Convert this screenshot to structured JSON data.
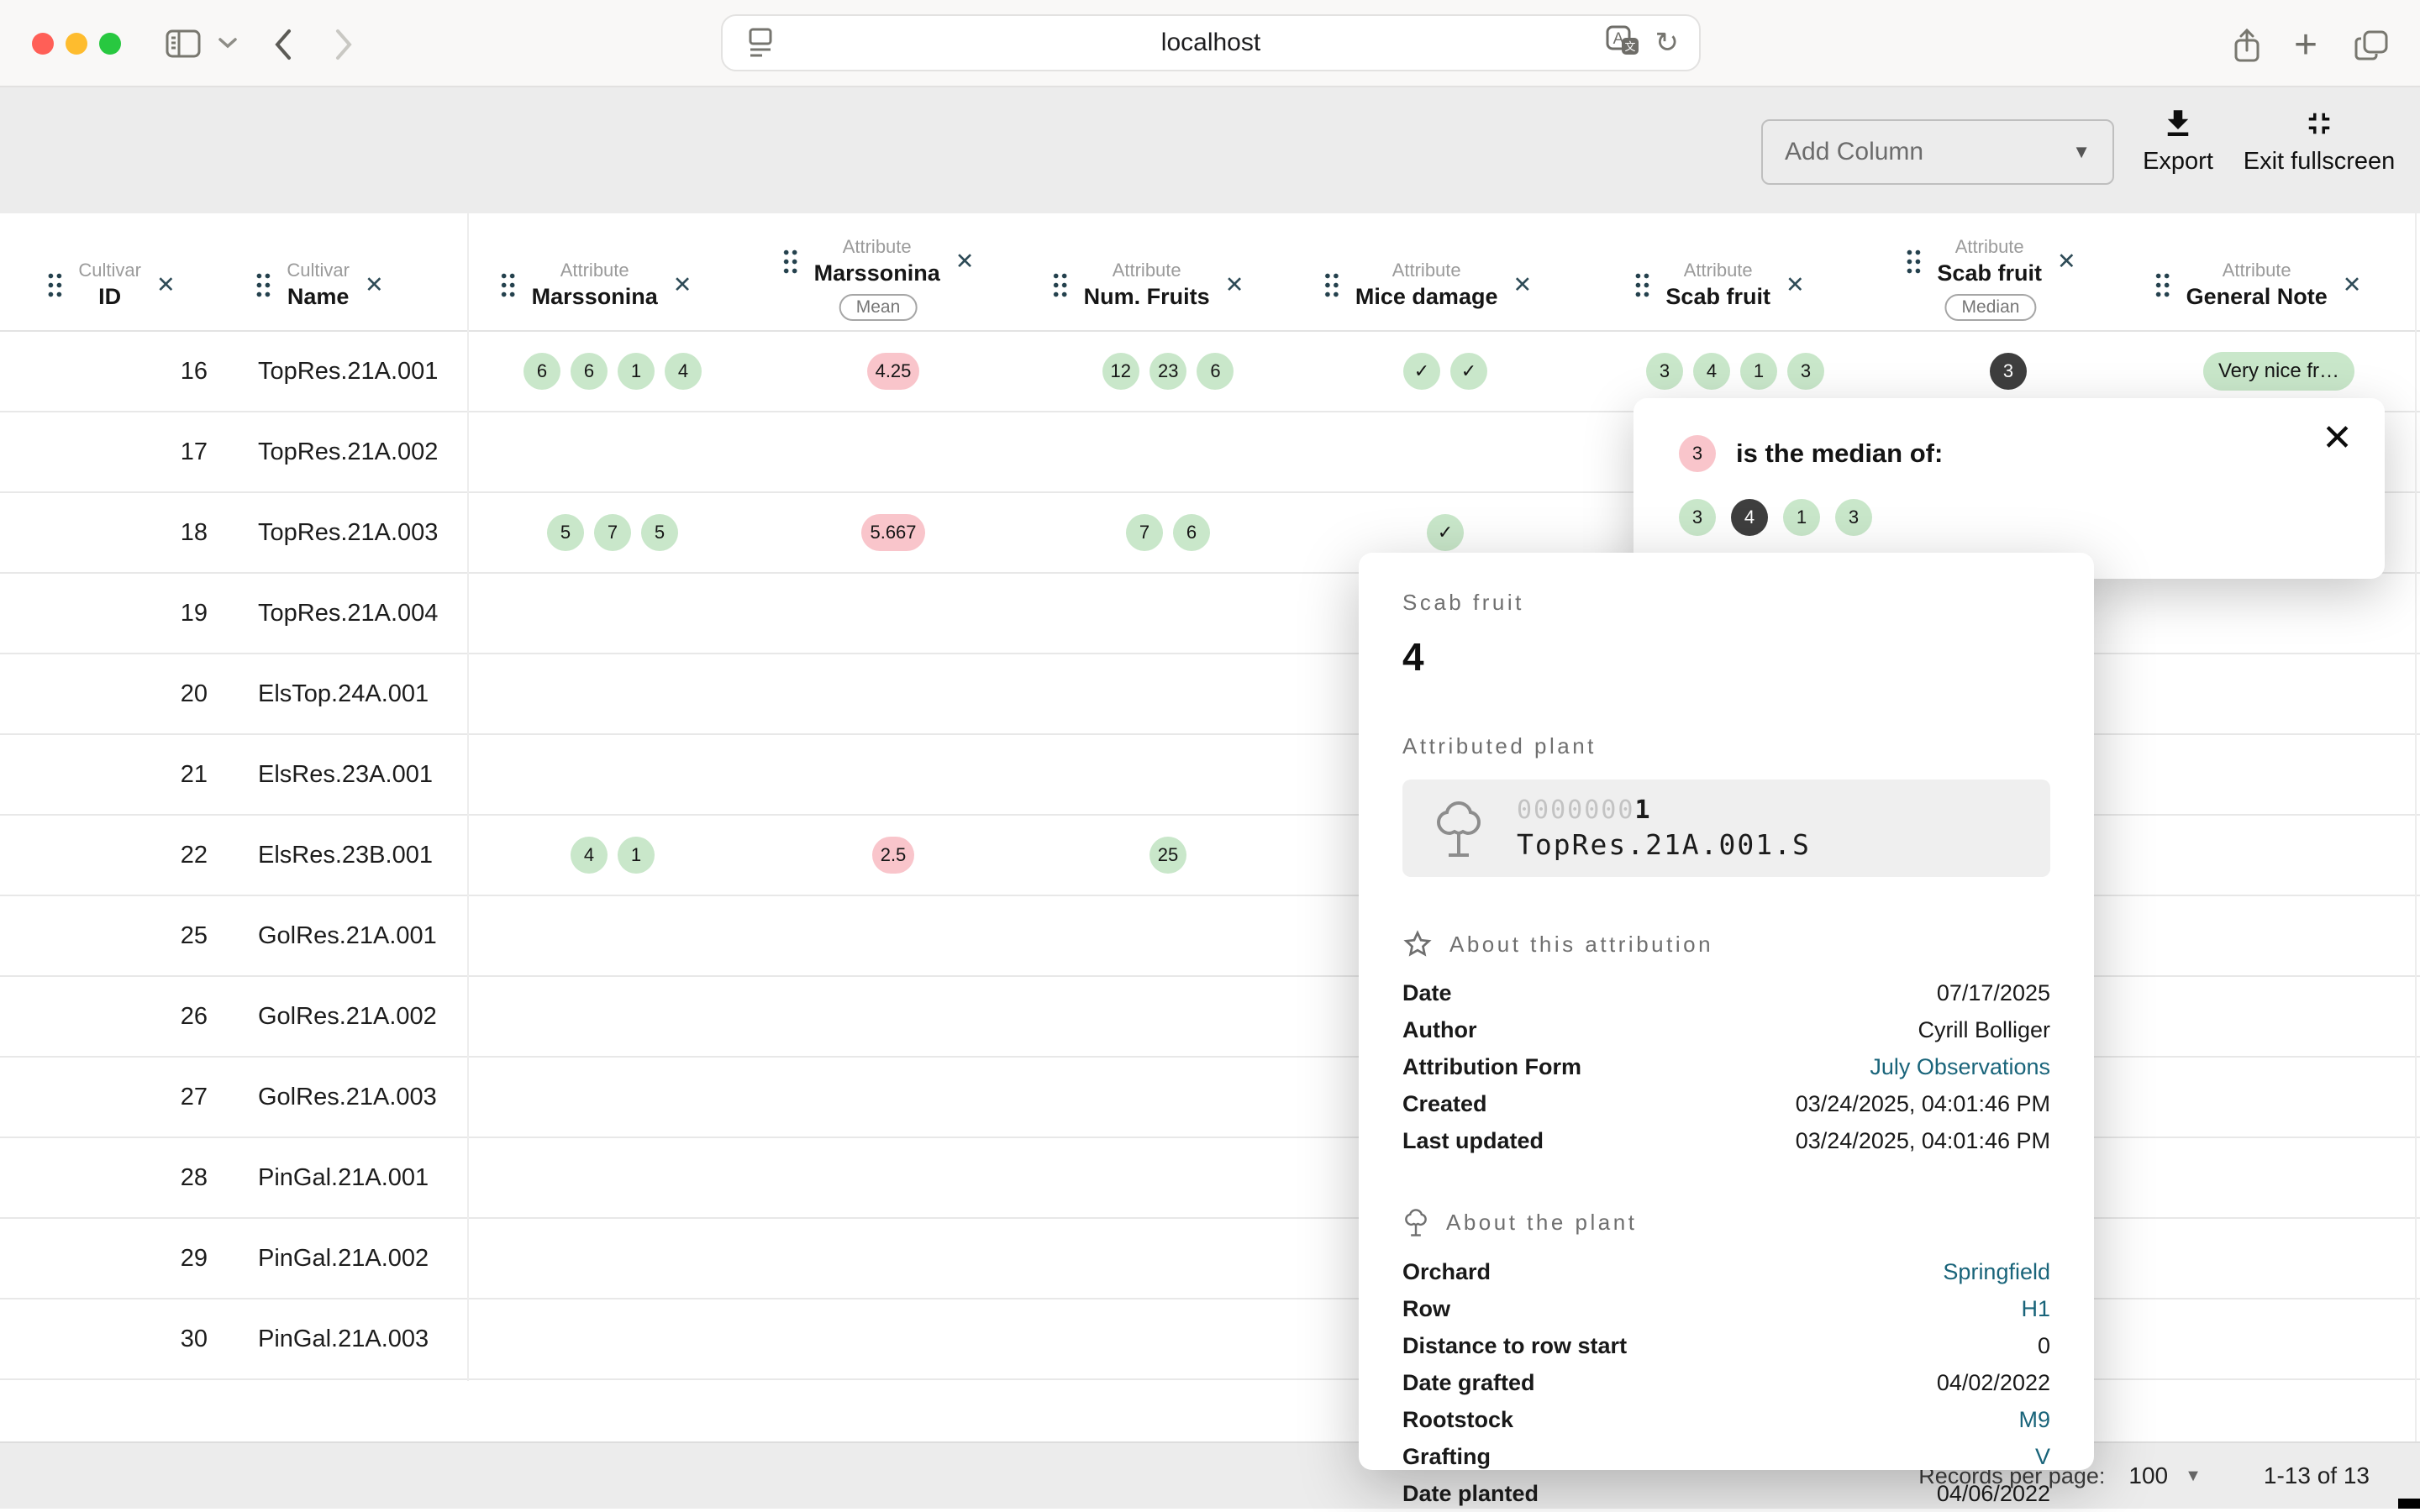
{
  "browser": {
    "url": "localhost"
  },
  "icons": {
    "close": "✕",
    "caret_down": "▼",
    "reload": "↻",
    "plus": "+",
    "check": "✓"
  },
  "colors": {
    "chip_green": "#c9e7ca",
    "chip_pink": "#f9c5cb",
    "chip_dark": "#3e3e3e",
    "link_teal": "#19647a"
  },
  "toolbar": {
    "add_column_label": "Add Column",
    "export_label": "Export",
    "exit_fullscreen_label": "Exit fullscreen"
  },
  "table": {
    "columns": [
      {
        "group": "Cultivar",
        "name": "ID"
      },
      {
        "group": "Cultivar",
        "name": "Name"
      },
      {
        "group": "Attribute",
        "name": "Marssonina"
      },
      {
        "group": "Attribute",
        "name": "Marssonina",
        "aggregate": "Mean"
      },
      {
        "group": "Attribute",
        "name": "Num. Fruits"
      },
      {
        "group": "Attribute",
        "name": "Mice damage"
      },
      {
        "group": "Attribute",
        "name": "Scab fruit"
      },
      {
        "group": "Attribute",
        "name": "Scab fruit",
        "aggregate": "Median"
      },
      {
        "group": "Attribute",
        "name": "General Note"
      }
    ],
    "rows": [
      {
        "id": "16",
        "name": "TopRes.21A.001",
        "marssonina": [
          {
            "t": "6",
            "s": "green"
          },
          {
            "t": "6",
            "s": "green"
          },
          {
            "t": "1",
            "s": "green"
          },
          {
            "t": "4",
            "s": "green"
          }
        ],
        "marssonina_mean": [
          {
            "t": "4.25",
            "s": "pink"
          }
        ],
        "num_fruits": [
          {
            "t": "12",
            "s": "green"
          },
          {
            "t": "23",
            "s": "green"
          },
          {
            "t": "6",
            "s": "green"
          }
        ],
        "mice_damage": [
          {
            "t": "✓",
            "s": "green"
          },
          {
            "t": "✓",
            "s": "green"
          }
        ],
        "scab_fruit": [
          {
            "t": "3",
            "s": "green"
          },
          {
            "t": "4",
            "s": "green"
          },
          {
            "t": "1",
            "s": "green"
          },
          {
            "t": "3",
            "s": "green"
          }
        ],
        "scab_median": [
          {
            "t": "3",
            "s": "dark"
          }
        ],
        "general_note": [
          {
            "t": "Very nice fr…",
            "s": "note"
          }
        ]
      },
      {
        "id": "17",
        "name": "TopRes.21A.002"
      },
      {
        "id": "18",
        "name": "TopRes.21A.003",
        "marssonina": [
          {
            "t": "5",
            "s": "green"
          },
          {
            "t": "7",
            "s": "green"
          },
          {
            "t": "5",
            "s": "green"
          }
        ],
        "marssonina_mean": [
          {
            "t": "5.667",
            "s": "pink"
          }
        ],
        "num_fruits": [
          {
            "t": "7",
            "s": "green"
          },
          {
            "t": "6",
            "s": "green"
          }
        ],
        "mice_damage": [
          {
            "t": "✓",
            "s": "green"
          }
        ]
      },
      {
        "id": "19",
        "name": "TopRes.21A.004"
      },
      {
        "id": "20",
        "name": "ElsTop.24A.001"
      },
      {
        "id": "21",
        "name": "ElsRes.23A.001"
      },
      {
        "id": "22",
        "name": "ElsRes.23B.001",
        "marssonina": [
          {
            "t": "4",
            "s": "green"
          },
          {
            "t": "1",
            "s": "green"
          }
        ],
        "marssonina_mean": [
          {
            "t": "2.5",
            "s": "pink"
          }
        ],
        "num_fruits": [
          {
            "t": "25",
            "s": "green"
          }
        ]
      },
      {
        "id": "25",
        "name": "GolRes.21A.001"
      },
      {
        "id": "26",
        "name": "GolRes.21A.002"
      },
      {
        "id": "27",
        "name": "GolRes.21A.003"
      },
      {
        "id": "28",
        "name": "PinGal.21A.001"
      },
      {
        "id": "29",
        "name": "PinGal.21A.002"
      },
      {
        "id": "30",
        "name": "PinGal.21A.003"
      }
    ]
  },
  "popup": {
    "chip": "3",
    "title": "is the median of:",
    "chips": [
      {
        "t": "3",
        "s": "green"
      },
      {
        "t": "4",
        "s": "dark"
      },
      {
        "t": "1",
        "s": "green"
      },
      {
        "t": "3",
        "s": "green"
      }
    ]
  },
  "card": {
    "attribute_label": "Scab fruit",
    "value": "4",
    "plant_label": "Attributed plant",
    "plant": {
      "id_prefix": "0000000",
      "id_suffix": "1",
      "name": "TopRes.21A.001.S"
    },
    "attribution_section": {
      "title": "About this attribution",
      "rows": [
        {
          "k": "Date",
          "v": "07/17/2025"
        },
        {
          "k": "Author",
          "v": "Cyrill Bolliger"
        },
        {
          "k": "Attribution Form",
          "v": "July Observations",
          "link": true
        },
        {
          "k": "Created",
          "v": "03/24/2025, 04:01:46 PM"
        },
        {
          "k": "Last updated",
          "v": "03/24/2025, 04:01:46 PM"
        }
      ]
    },
    "plant_section": {
      "title": "About the plant",
      "rows": [
        {
          "k": "Orchard",
          "v": "Springfield",
          "link": true
        },
        {
          "k": "Row",
          "v": "H1",
          "link": true
        },
        {
          "k": "Distance to row start",
          "v": "0"
        },
        {
          "k": "Date grafted",
          "v": "04/02/2022"
        },
        {
          "k": "Rootstock",
          "v": "M9",
          "link": true
        },
        {
          "k": "Grafting",
          "v": "V",
          "link": true
        },
        {
          "k": "Date planted",
          "v": "04/06/2022"
        }
      ]
    }
  },
  "footer": {
    "records_label": "Records per page:",
    "page_size": "100",
    "range": "1-13 of 13"
  }
}
